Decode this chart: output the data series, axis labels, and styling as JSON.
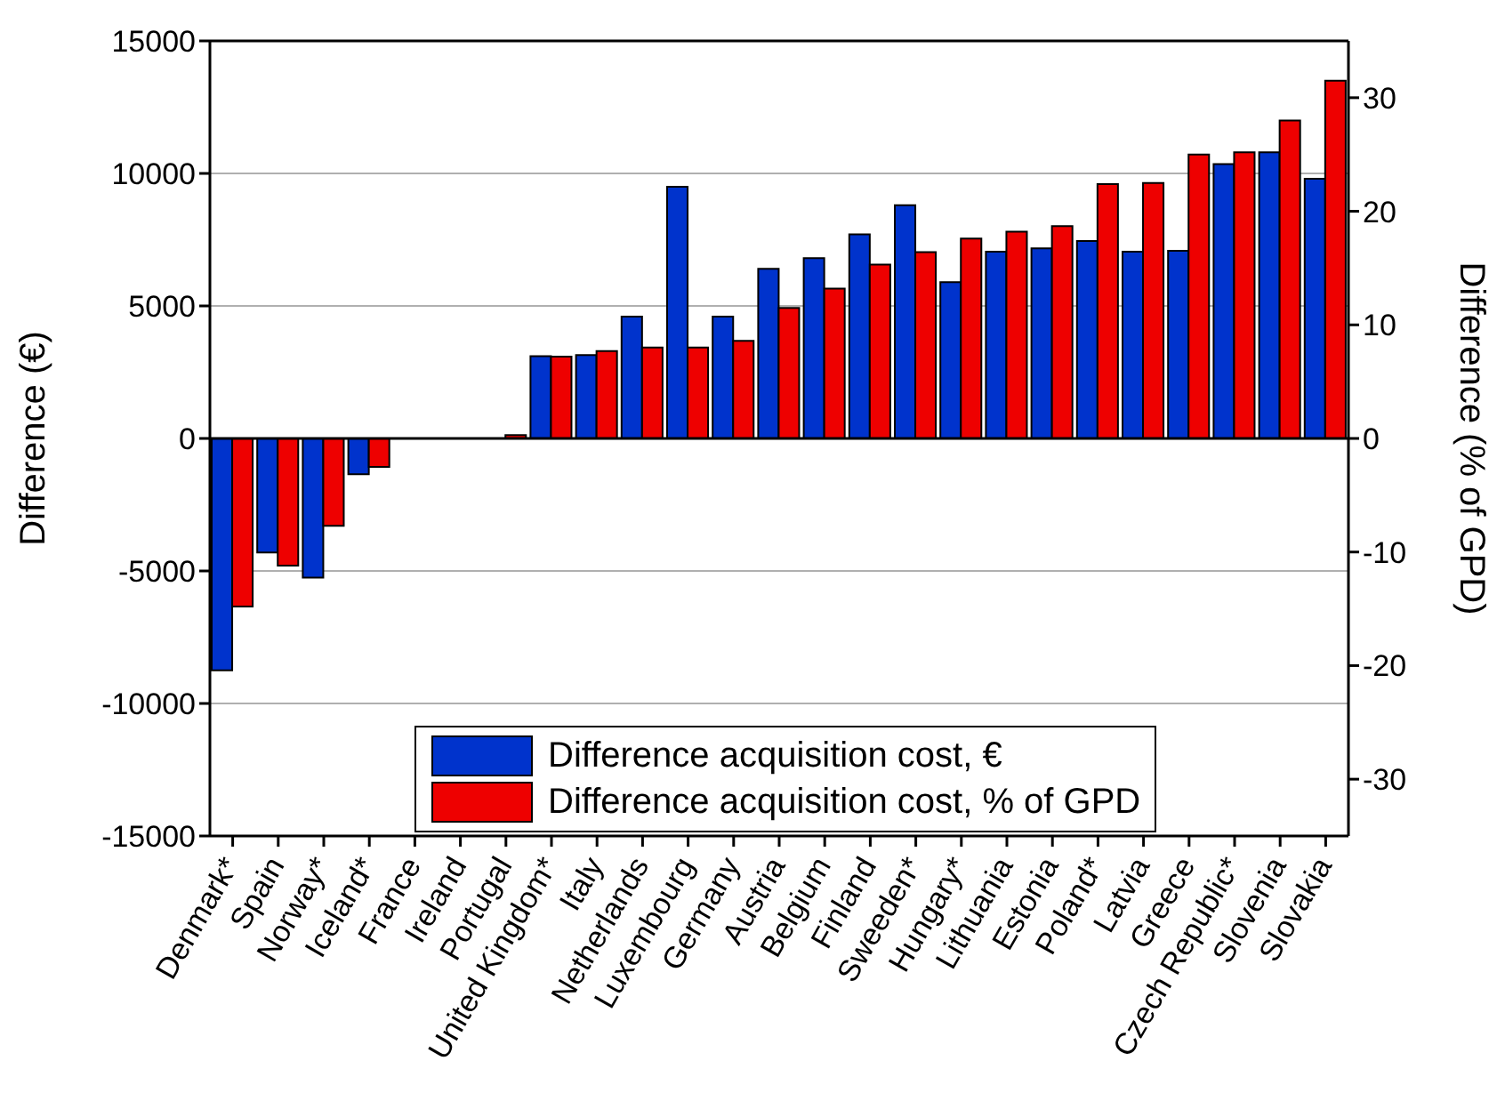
{
  "chart_data": {
    "type": "bar",
    "ylabel": "Difference (€)",
    "y2label": "Difference (% of GPD)",
    "categories": [
      "Denmark*",
      "Spain",
      "Norway*",
      "Iceland*",
      "France",
      "Ireland",
      "Portugal",
      "United Kingdom*",
      "Italy",
      "Netherlands",
      "Luxembourg",
      "Germany",
      "Austria",
      "Belgium",
      "Finland",
      "Sweeden*",
      "Hungary*",
      "Lithuania",
      "Estonia",
      "Poland*",
      "Latvia",
      "Greece",
      "Czech Republic*",
      "Slovenia",
      "Slovakia"
    ],
    "series": [
      {
        "name": "Difference acquisition cost, €",
        "color": "#0033cc",
        "values": [
          -8750,
          -4300,
          -5250,
          -1350,
          null,
          null,
          null,
          3100,
          3150,
          4600,
          9500,
          4600,
          6400,
          6800,
          7700,
          8800,
          5900,
          7050,
          7170,
          7450,
          7050,
          7080,
          10350,
          10800,
          9800
        ]
      },
      {
        "name": "Difference acquisition cost, % of GPD",
        "color": "#ee0000",
        "axis": "y2",
        "values": [
          -14.8,
          -11.2,
          -7.7,
          -2.5,
          null,
          null,
          0.3,
          7.2,
          7.7,
          8.0,
          8.0,
          8.6,
          11.5,
          13.2,
          15.3,
          16.4,
          17.6,
          18.2,
          18.7,
          22.4,
          22.5,
          25.0,
          25.2,
          28.0,
          31.5
        ]
      }
    ],
    "ylim": [
      -15000,
      15000
    ],
    "yticks": [
      -15000,
      -10000,
      -5000,
      0,
      5000,
      10000,
      15000
    ],
    "y2lim": [
      -35,
      35
    ],
    "y2ticks": [
      -30,
      -20,
      -10,
      0,
      10,
      20,
      30
    ],
    "ref_lines": [
      {
        "axis": "y",
        "value": 0,
        "color": "#000000"
      }
    ],
    "grid": "y",
    "legend": "bottom"
  }
}
